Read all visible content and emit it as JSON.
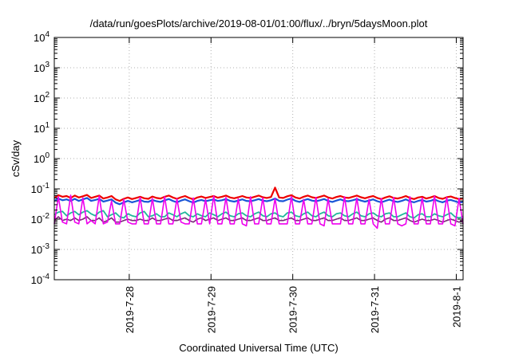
{
  "chart_data": {
    "type": "line",
    "title": "/data/run/goesPlots/archive/2019-08-01/01:00/flux/../bryn/5daysMoon.plot",
    "xlabel": "Coordinated Universal Time (UTC)",
    "ylabel": "cSv/day",
    "y_scale": "log",
    "ylim": [
      0.0001,
      10000
    ],
    "y_ticks": [
      {
        "value": 0.0001,
        "base": "10",
        "exp": "-4"
      },
      {
        "value": 0.001,
        "base": "10",
        "exp": "-3"
      },
      {
        "value": 0.01,
        "base": "10",
        "exp": "-2"
      },
      {
        "value": 0.1,
        "base": "10",
        "exp": "-1"
      },
      {
        "value": 1,
        "base": "10",
        "exp": "0"
      },
      {
        "value": 10,
        "base": "10",
        "exp": "1"
      },
      {
        "value": 100,
        "base": "10",
        "exp": "2"
      },
      {
        "value": 1000,
        "base": "10",
        "exp": "3"
      },
      {
        "value": 10000,
        "base": "10",
        "exp": "4"
      }
    ],
    "xlim": [
      "2019-07-27T02:00",
      "2019-08-01T02:00"
    ],
    "x_ticks": [
      {
        "value": "2019-07-28T00:00",
        "label": "2019-7-28"
      },
      {
        "value": "2019-07-29T00:00",
        "label": "2019-7-29"
      },
      {
        "value": "2019-07-30T00:00",
        "label": "2019-7-30"
      },
      {
        "value": "2019-07-31T00:00",
        "label": "2019-7-31"
      },
      {
        "value": "2019-08-01T00:00",
        "label": "2019-8-1"
      }
    ],
    "grid": true,
    "legend": "none",
    "series": [
      {
        "color": "#ee0000",
        "width": 2.2,
        "values": [
          0.05,
          0.062,
          0.055,
          0.058,
          0.05,
          0.06,
          0.052,
          0.057,
          0.063,
          0.05,
          0.055,
          0.06,
          0.048,
          0.052,
          0.058,
          0.045,
          0.04,
          0.047,
          0.052,
          0.046,
          0.05,
          0.055,
          0.049,
          0.047,
          0.056,
          0.05,
          0.048,
          0.055,
          0.06,
          0.052,
          0.047,
          0.053,
          0.058,
          0.05,
          0.045,
          0.052,
          0.056,
          0.05,
          0.054,
          0.058,
          0.051,
          0.055,
          0.06,
          0.052,
          0.049,
          0.053,
          0.058,
          0.052,
          0.05,
          0.055,
          0.06,
          0.053,
          0.05,
          0.054,
          0.11,
          0.052,
          0.05,
          0.057,
          0.062,
          0.052,
          0.048,
          0.055,
          0.06,
          0.053,
          0.05,
          0.055,
          0.06,
          0.052,
          0.048,
          0.054,
          0.058,
          0.052,
          0.05,
          0.055,
          0.06,
          0.053,
          0.049,
          0.054,
          0.058,
          0.05,
          0.046,
          0.052,
          0.057,
          0.05,
          0.048,
          0.052,
          0.058,
          0.05,
          0.046,
          0.052,
          0.055,
          0.048,
          0.052,
          0.058,
          0.05,
          0.047,
          0.053,
          0.056,
          0.05,
          0.046,
          0.048
        ]
      },
      {
        "color": "#1a55d6",
        "width": 2.2,
        "values": [
          0.04,
          0.048,
          0.042,
          0.045,
          0.04,
          0.047,
          0.04,
          0.045,
          0.05,
          0.04,
          0.043,
          0.047,
          0.038,
          0.041,
          0.045,
          0.035,
          0.031,
          0.036,
          0.04,
          0.036,
          0.039,
          0.043,
          0.038,
          0.037,
          0.043,
          0.039,
          0.037,
          0.042,
          0.046,
          0.04,
          0.036,
          0.041,
          0.045,
          0.039,
          0.035,
          0.04,
          0.043,
          0.039,
          0.042,
          0.045,
          0.04,
          0.042,
          0.046,
          0.04,
          0.038,
          0.041,
          0.045,
          0.04,
          0.039,
          0.042,
          0.046,
          0.041,
          0.039,
          0.042,
          0.048,
          0.04,
          0.039,
          0.044,
          0.048,
          0.04,
          0.037,
          0.042,
          0.046,
          0.041,
          0.039,
          0.042,
          0.046,
          0.04,
          0.037,
          0.041,
          0.045,
          0.04,
          0.039,
          0.042,
          0.046,
          0.041,
          0.038,
          0.041,
          0.045,
          0.039,
          0.036,
          0.04,
          0.044,
          0.039,
          0.037,
          0.04,
          0.045,
          0.039,
          0.036,
          0.04,
          0.043,
          0.038,
          0.04,
          0.045,
          0.039,
          0.036,
          0.041,
          0.043,
          0.039,
          0.035,
          0.037
        ]
      },
      {
        "color": "#1fb89a",
        "width": 1.8,
        "values": [
          0.014,
          0.017,
          0.018,
          0.013,
          0.016,
          0.018,
          0.014,
          0.017,
          0.019,
          0.015,
          0.013,
          0.017,
          0.019,
          0.012,
          0.014,
          0.016,
          0.012,
          0.011,
          0.015,
          0.013,
          0.012,
          0.016,
          0.018,
          0.012,
          0.013,
          0.015,
          0.012,
          0.012,
          0.016,
          0.014,
          0.012,
          0.015,
          0.017,
          0.013,
          0.012,
          0.015,
          0.013,
          0.012,
          0.016,
          0.014,
          0.012,
          0.015,
          0.017,
          0.013,
          0.012,
          0.015,
          0.016,
          0.013,
          0.012,
          0.015,
          0.017,
          0.013,
          0.012,
          0.015,
          0.016,
          0.013,
          0.012,
          0.016,
          0.017,
          0.013,
          0.012,
          0.015,
          0.017,
          0.013,
          0.012,
          0.015,
          0.017,
          0.013,
          0.012,
          0.015,
          0.016,
          0.013,
          0.012,
          0.015,
          0.017,
          0.013,
          0.012,
          0.015,
          0.016,
          0.013,
          0.012,
          0.015,
          0.016,
          0.012,
          0.012,
          0.014,
          0.016,
          0.012,
          0.011,
          0.014,
          0.015,
          0.012,
          0.012,
          0.015,
          0.013,
          0.012,
          0.014,
          0.016,
          0.012,
          0.011,
          0.012
        ]
      },
      {
        "color": "#7a2a7a",
        "width": 1.6,
        "values": [
          0.009,
          0.012,
          0.009,
          0.01,
          0.009,
          0.011,
          0.009,
          0.01,
          0.012,
          0.009,
          0.009,
          0.011,
          0.008,
          0.009,
          0.011,
          0.008,
          0.008,
          0.009,
          0.01,
          0.009,
          0.009,
          0.01,
          0.009,
          0.009,
          0.011,
          0.009,
          0.009,
          0.01,
          0.011,
          0.009,
          0.009,
          0.01,
          0.011,
          0.009,
          0.008,
          0.01,
          0.011,
          0.009,
          0.01,
          0.011,
          0.009,
          0.01,
          0.011,
          0.009,
          0.009,
          0.01,
          0.011,
          0.009,
          0.009,
          0.01,
          0.011,
          0.009,
          0.009,
          0.01,
          0.011,
          0.009,
          0.009,
          0.01,
          0.011,
          0.009,
          0.009,
          0.01,
          0.011,
          0.009,
          0.009,
          0.01,
          0.011,
          0.009,
          0.009,
          0.01,
          0.011,
          0.009,
          0.009,
          0.01,
          0.011,
          0.009,
          0.009,
          0.01,
          0.011,
          0.009,
          0.008,
          0.01,
          0.011,
          0.009,
          0.009,
          0.01,
          0.011,
          0.009,
          0.008,
          0.009,
          0.01,
          0.009,
          0.009,
          0.01,
          0.009,
          0.008,
          0.009,
          0.01,
          0.009,
          0.008,
          0.009
        ]
      },
      {
        "color": "#ee00ee",
        "width": 1.6,
        "values": [
          0.007,
          0.055,
          0.008,
          0.007,
          0.062,
          0.008,
          0.007,
          0.05,
          0.007,
          0.009,
          0.007,
          0.058,
          0.007,
          0.008,
          0.04,
          0.007,
          0.007,
          0.045,
          0.008,
          0.007,
          0.007,
          0.052,
          0.007,
          0.007,
          0.048,
          0.007,
          0.007,
          0.055,
          0.007,
          0.007,
          0.047,
          0.008,
          0.007,
          0.007,
          0.05,
          0.007,
          0.007,
          0.045,
          0.007,
          0.058,
          0.007,
          0.007,
          0.052,
          0.007,
          0.007,
          0.047,
          0.007,
          0.006,
          0.055,
          0.007,
          0.007,
          0.05,
          0.007,
          0.007,
          0.048,
          0.007,
          0.007,
          0.007,
          0.056,
          0.007,
          0.007,
          0.045,
          0.007,
          0.007,
          0.052,
          0.007,
          0.006,
          0.047,
          0.007,
          0.007,
          0.007,
          0.055,
          0.007,
          0.007,
          0.05,
          0.007,
          0.007,
          0.045,
          0.007,
          0.005,
          0.048,
          0.007,
          0.007,
          0.052,
          0.007,
          0.006,
          0.007,
          0.055,
          0.007,
          0.007,
          0.05,
          0.007,
          0.007,
          0.058,
          0.007,
          0.007,
          0.052,
          0.007,
          0.006,
          0.048,
          0.007
        ]
      }
    ]
  }
}
